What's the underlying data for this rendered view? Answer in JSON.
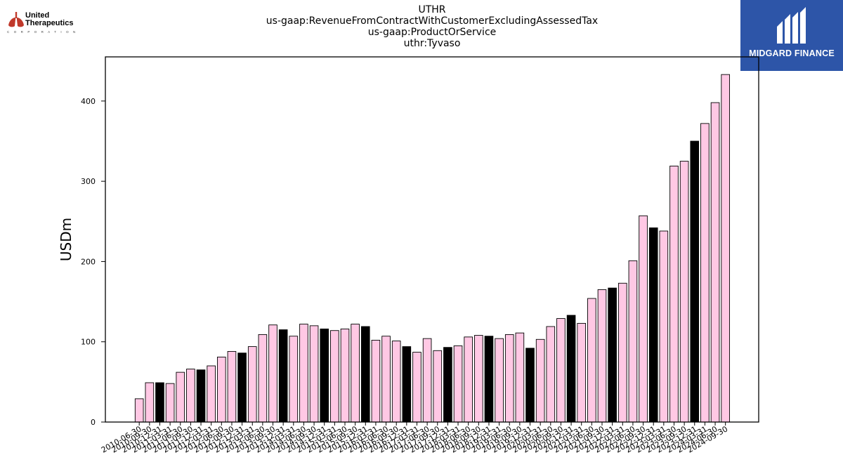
{
  "header": {
    "title_lines": [
      "UTHR",
      "us-gaap:RevenueFromContractWithCustomerExcludingAssessedTax",
      "us-gaap:ProductOrService",
      "uthr:Tyvaso"
    ]
  },
  "logos": {
    "left": {
      "line1": "United",
      "line2": "Therapeutics",
      "line3": "C O R P O R A T I O N"
    },
    "right": {
      "name": "MIDGARD FINANCE",
      "bg_color": "#2d55a8"
    }
  },
  "chart_data": {
    "type": "bar",
    "ylabel": "USDm",
    "xlabel": "",
    "ylim": [
      0,
      455
    ],
    "yticks": [
      0,
      100,
      200,
      300,
      400
    ],
    "grid": false,
    "legend": "none",
    "colors": {
      "default": "#ffc8e4",
      "annual": "#000000",
      "edge": "#000000"
    },
    "categories": [
      "2010-06-30",
      "2010-09-30",
      "2010-12-31",
      "2011-03-31",
      "2011-06-30",
      "2011-09-30",
      "2011-12-31",
      "2012-03-31",
      "2012-06-30",
      "2012-09-30",
      "2012-12-31",
      "2013-03-31",
      "2013-06-30",
      "2013-09-30",
      "2013-12-31",
      "2014-03-31",
      "2014-06-30",
      "2014-09-30",
      "2014-12-31",
      "2015-03-31",
      "2015-06-30",
      "2015-09-30",
      "2015-12-31",
      "2016-03-31",
      "2016-06-30",
      "2016-09-30",
      "2016-12-31",
      "2017-03-31",
      "2017-06-30",
      "2017-09-30",
      "2017-12-31",
      "2018-03-31",
      "2018-06-30",
      "2018-09-30",
      "2018-12-31",
      "2019-03-31",
      "2019-06-30",
      "2019-09-30",
      "2019-12-31",
      "2020-03-31",
      "2020-06-30",
      "2020-09-30",
      "2020-12-31",
      "2021-03-31",
      "2021-06-30",
      "2021-09-30",
      "2021-12-31",
      "2022-03-31",
      "2022-06-30",
      "2022-09-30",
      "2022-12-31",
      "2023-03-31",
      "2023-06-30",
      "2023-09-30",
      "2023-12-31",
      "2024-03-31",
      "2024-06-30",
      "2024-09-30"
    ],
    "values": [
      29,
      49,
      49,
      48,
      62,
      66,
      65,
      70,
      81,
      88,
      86,
      94,
      109,
      121,
      115,
      107,
      122,
      120,
      116,
      114,
      116,
      122,
      119,
      102,
      107,
      101,
      94,
      87,
      104,
      89,
      93,
      95,
      106,
      108,
      107,
      104,
      109,
      111,
      92,
      103,
      119,
      129,
      133,
      123,
      154,
      165,
      167,
      173,
      201,
      257,
      242,
      238,
      319,
      325,
      350,
      372,
      398,
      433
    ],
    "annual_flags": [
      0,
      0,
      1,
      0,
      0,
      0,
      1,
      0,
      0,
      0,
      1,
      0,
      0,
      0,
      1,
      0,
      0,
      0,
      1,
      0,
      0,
      0,
      1,
      0,
      0,
      0,
      1,
      0,
      0,
      0,
      1,
      0,
      0,
      0,
      1,
      0,
      0,
      0,
      1,
      0,
      0,
      0,
      1,
      0,
      0,
      0,
      1,
      0,
      0,
      0,
      1,
      0,
      0,
      0,
      1,
      0,
      0,
      0
    ]
  }
}
